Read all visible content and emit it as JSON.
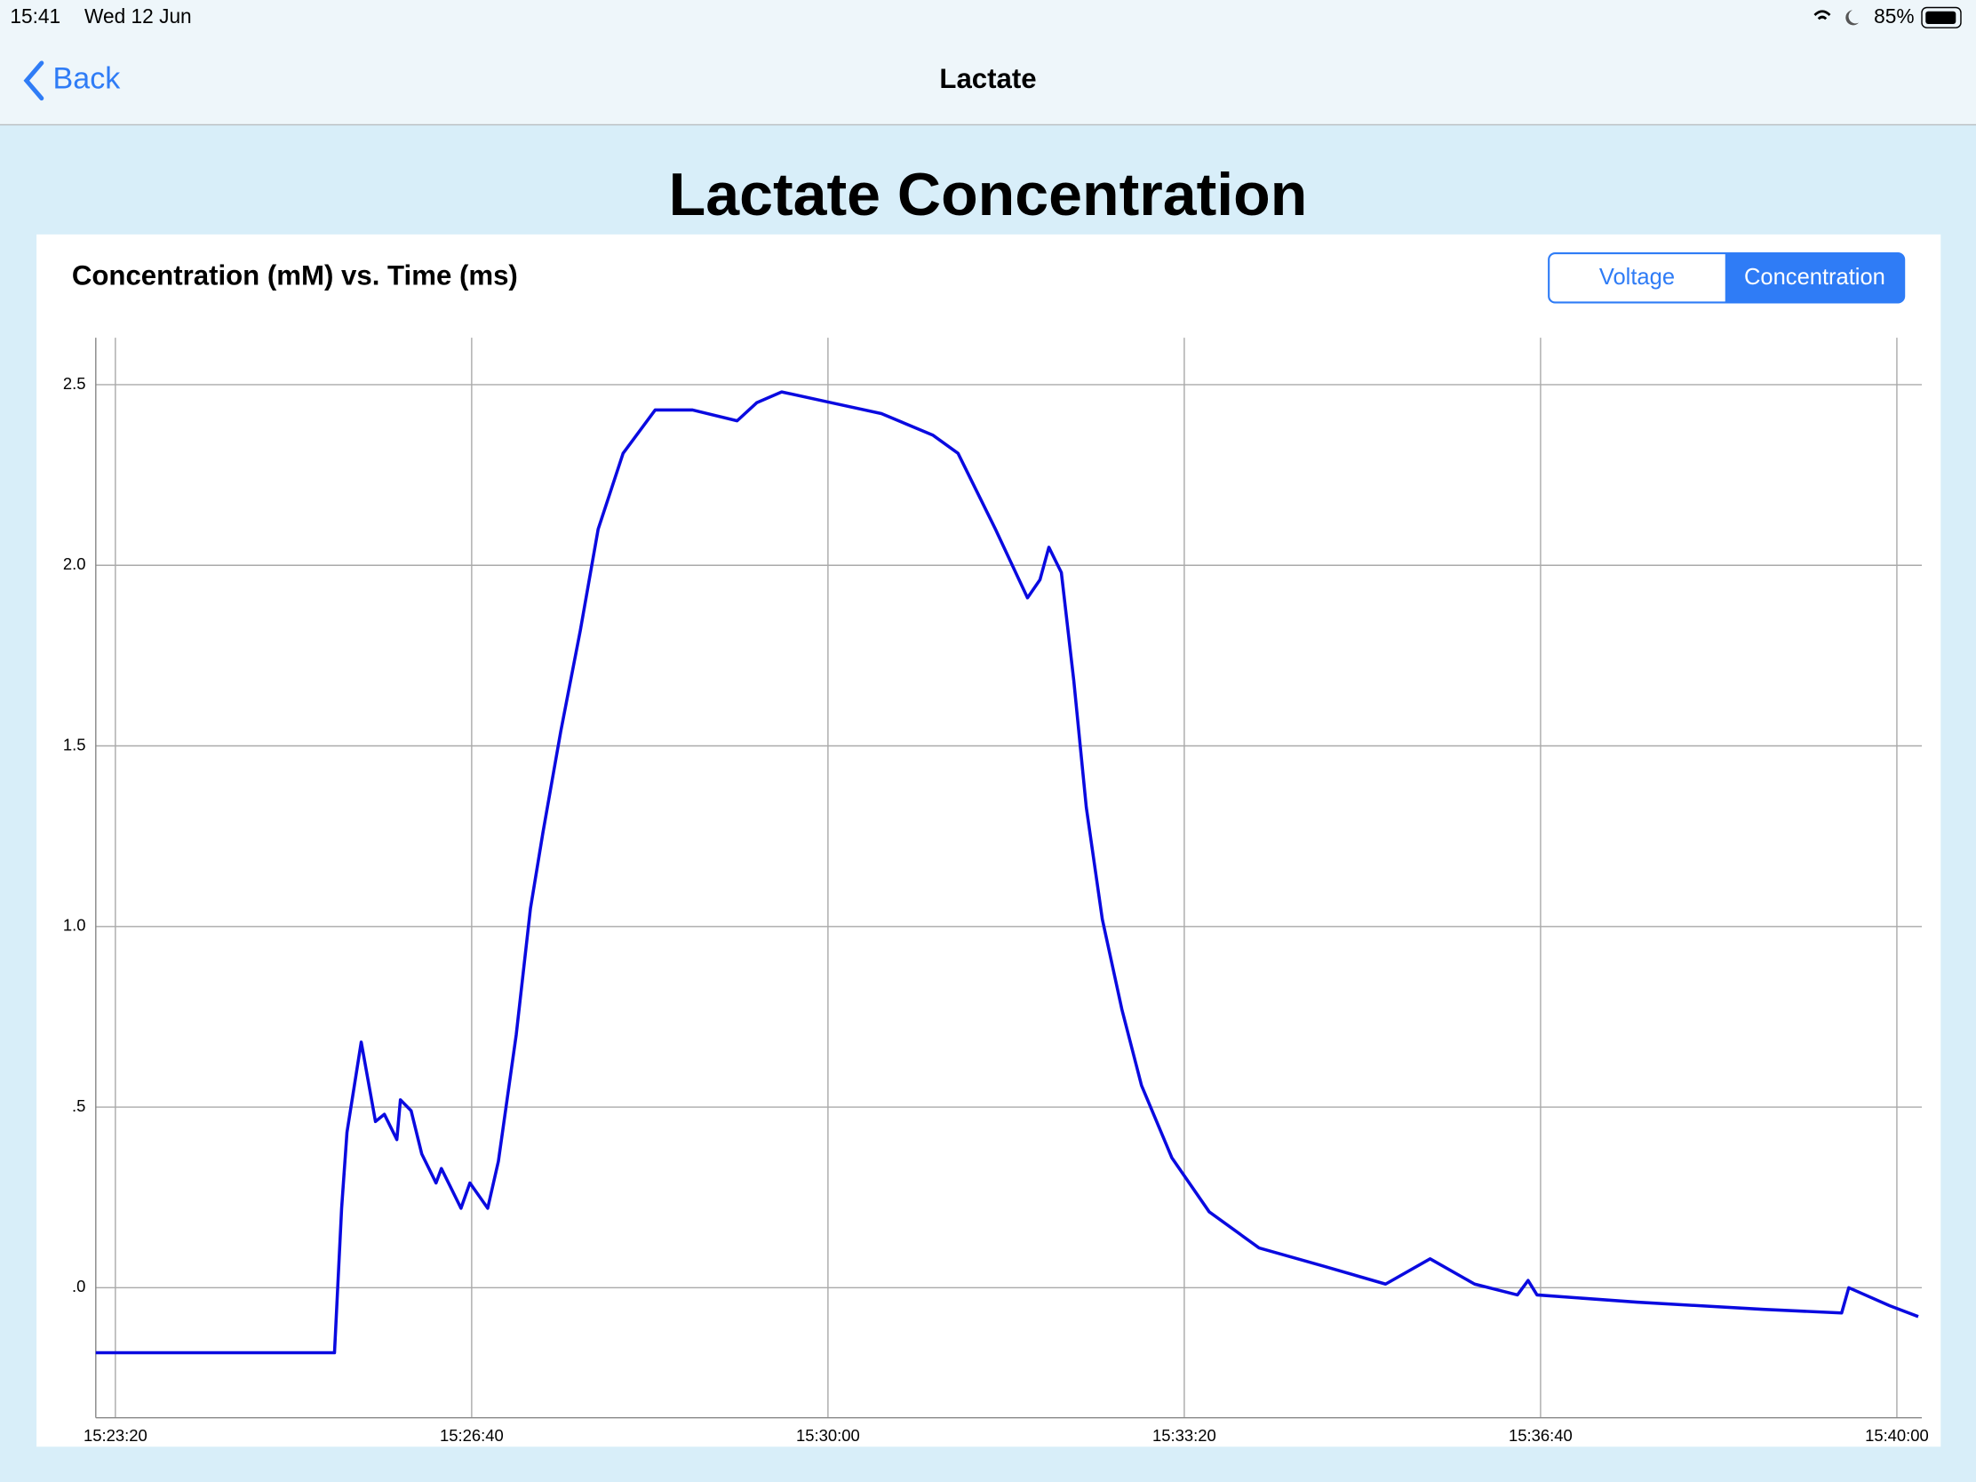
{
  "status_bar": {
    "time": "15:41",
    "date": "Wed 12 Jun",
    "battery": "85%"
  },
  "nav": {
    "back": "Back",
    "title": "Lactate"
  },
  "heading": "Lactate Concentration",
  "segments": [
    "Voltage",
    "Concentration"
  ],
  "chart_data": {
    "type": "line",
    "title": "Concentration (mM) vs. Time (ms)",
    "color": "#0a0ae0",
    "grid": true,
    "x": [
      55389,
      55523,
      55527,
      55530,
      55538,
      55546,
      55551,
      55558,
      55560,
      55566,
      55572,
      55580,
      55583,
      55594,
      55599,
      55609,
      55615,
      55625,
      55633,
      55640,
      55650,
      55661,
      55671,
      55685,
      55703,
      55724,
      55749,
      55760,
      55774,
      55802,
      55830,
      55859,
      55873,
      55894,
      55912,
      55919,
      55924,
      55931,
      55938,
      55945,
      55954,
      55965,
      55976,
      55993,
      56014,
      56042,
      56078,
      56113,
      56138,
      56163,
      56187,
      56193,
      56198,
      56254,
      56325,
      56369,
      56373,
      56396,
      56412
    ],
    "values": [
      -0.18,
      -0.18,
      0.22,
      0.43,
      0.68,
      0.46,
      0.48,
      0.41,
      0.52,
      0.49,
      0.37,
      0.29,
      0.33,
      0.22,
      0.29,
      0.22,
      0.35,
      0.7,
      1.05,
      1.26,
      1.54,
      1.82,
      2.1,
      2.31,
      2.43,
      2.43,
      2.4,
      2.45,
      2.48,
      2.45,
      2.42,
      2.36,
      2.31,
      2.1,
      1.91,
      1.96,
      2.05,
      1.98,
      1.68,
      1.33,
      1.02,
      0.77,
      0.56,
      0.36,
      0.21,
      0.11,
      0.06,
      0.01,
      0.08,
      0.01,
      -0.02,
      0.02,
      -0.02,
      -0.04,
      -0.06,
      -0.07,
      0,
      -0.05,
      -0.08
    ],
    "xlim": [
      55389,
      56414
    ],
    "xticks": [
      {
        "value": 55400,
        "label": "15:23:20"
      },
      {
        "value": 55600,
        "label": "15:26:40"
      },
      {
        "value": 55800,
        "label": "15:30:00"
      },
      {
        "value": 56000,
        "label": "15:33:20"
      },
      {
        "value": 56200,
        "label": "15:36:40"
      },
      {
        "value": 56400,
        "label": "15:40:00"
      }
    ],
    "ylim": [
      -0.36,
      2.63
    ],
    "yticks": [
      2.5,
      {
        "value": 2,
        "label": "2.0"
      },
      1.5,
      {
        "value": 1,
        "label": "1.0"
      },
      {
        "value": 0.5,
        "label": ".5"
      },
      {
        "value": 0,
        "label": ".0"
      }
    ]
  }
}
